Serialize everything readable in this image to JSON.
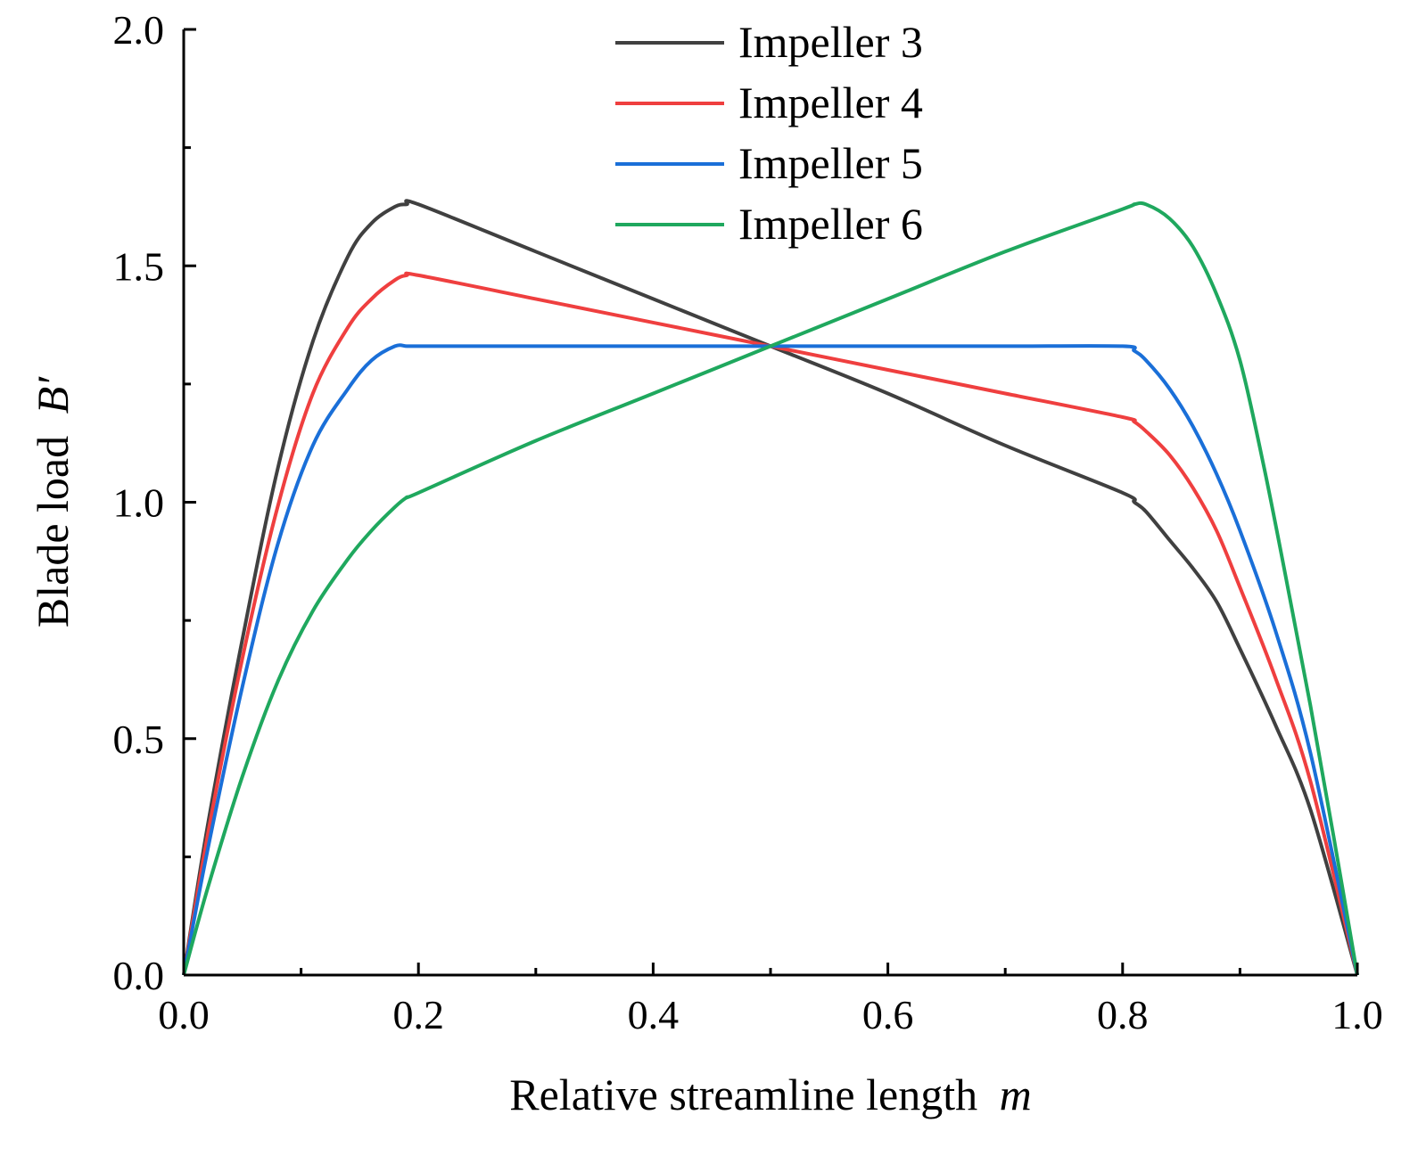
{
  "chart_data": {
    "type": "line",
    "xlabel": "Relative streamline length",
    "xlabel_var": "m",
    "ylabel": "Blade load",
    "ylabel_var": "B′",
    "xlim": [
      0.0,
      1.0
    ],
    "ylim": [
      0.0,
      2.0
    ],
    "x_ticks": [
      0.0,
      0.2,
      0.4,
      0.6,
      0.8,
      1.0
    ],
    "x_tick_labels": [
      "0.0",
      "0.2",
      "0.4",
      "0.6",
      "0.8",
      "1.0"
    ],
    "y_ticks": [
      0.0,
      0.5,
      1.0,
      1.5,
      2.0
    ],
    "y_tick_labels": [
      "0.0",
      "0.5",
      "1.0",
      "1.5",
      "2.0"
    ],
    "x_minor_ticks": [
      0.1,
      0.3,
      0.5,
      0.7,
      0.9
    ],
    "y_minor_ticks": [
      0.25,
      0.75,
      1.25,
      1.75
    ],
    "grid": false,
    "legend_position": "top-center",
    "series": [
      {
        "name": "Impeller 3",
        "color": "#404040",
        "x": [
          0.0,
          0.02,
          0.05,
          0.08,
          0.11,
          0.14,
          0.16,
          0.18,
          0.19,
          0.2,
          0.3,
          0.4,
          0.5,
          0.6,
          0.7,
          0.8,
          0.81,
          0.82,
          0.84,
          0.86,
          0.88,
          0.9,
          0.93,
          0.96,
          1.0
        ],
        "y": [
          0.0,
          0.31,
          0.71,
          1.07,
          1.34,
          1.52,
          1.59,
          1.625,
          1.63,
          1.63,
          1.53,
          1.43,
          1.33,
          1.23,
          1.12,
          1.02,
          1.0,
          0.98,
          0.92,
          0.86,
          0.79,
          0.69,
          0.53,
          0.35,
          0.0
        ]
      },
      {
        "name": "Impeller 4",
        "color": "#ef3f3f",
        "x": [
          0.0,
          0.02,
          0.05,
          0.08,
          0.11,
          0.14,
          0.16,
          0.18,
          0.19,
          0.2,
          0.3,
          0.4,
          0.5,
          0.6,
          0.7,
          0.8,
          0.81,
          0.82,
          0.84,
          0.86,
          0.88,
          0.9,
          0.93,
          0.96,
          1.0
        ],
        "y": [
          0.0,
          0.29,
          0.67,
          0.99,
          1.23,
          1.37,
          1.43,
          1.47,
          1.48,
          1.48,
          1.43,
          1.38,
          1.33,
          1.28,
          1.23,
          1.18,
          1.17,
          1.15,
          1.1,
          1.03,
          0.94,
          0.82,
          0.63,
          0.41,
          0.0
        ]
      },
      {
        "name": "Impeller 5",
        "color": "#1a6fd8",
        "x": [
          0.0,
          0.02,
          0.05,
          0.08,
          0.11,
          0.14,
          0.16,
          0.18,
          0.19,
          0.2,
          0.3,
          0.4,
          0.5,
          0.6,
          0.7,
          0.8,
          0.81,
          0.82,
          0.84,
          0.86,
          0.88,
          0.9,
          0.93,
          0.96,
          1.0
        ],
        "y": [
          0.0,
          0.26,
          0.61,
          0.91,
          1.12,
          1.24,
          1.3,
          1.33,
          1.33,
          1.33,
          1.33,
          1.33,
          1.33,
          1.33,
          1.33,
          1.33,
          1.32,
          1.3,
          1.24,
          1.16,
          1.06,
          0.94,
          0.73,
          0.47,
          0.0
        ]
      },
      {
        "name": "Impeller 6",
        "color": "#1fa85e",
        "x": [
          0.0,
          0.02,
          0.05,
          0.08,
          0.11,
          0.14,
          0.16,
          0.18,
          0.19,
          0.2,
          0.3,
          0.4,
          0.5,
          0.6,
          0.7,
          0.8,
          0.81,
          0.82,
          0.84,
          0.86,
          0.88,
          0.9,
          0.92,
          0.94,
          0.96,
          0.98,
          1.0
        ],
        "y": [
          0.0,
          0.18,
          0.42,
          0.62,
          0.77,
          0.88,
          0.94,
          0.99,
          1.01,
          1.02,
          1.13,
          1.23,
          1.33,
          1.43,
          1.53,
          1.62,
          1.63,
          1.63,
          1.6,
          1.54,
          1.44,
          1.3,
          1.08,
          0.83,
          0.57,
          0.29,
          0.0
        ]
      }
    ]
  }
}
